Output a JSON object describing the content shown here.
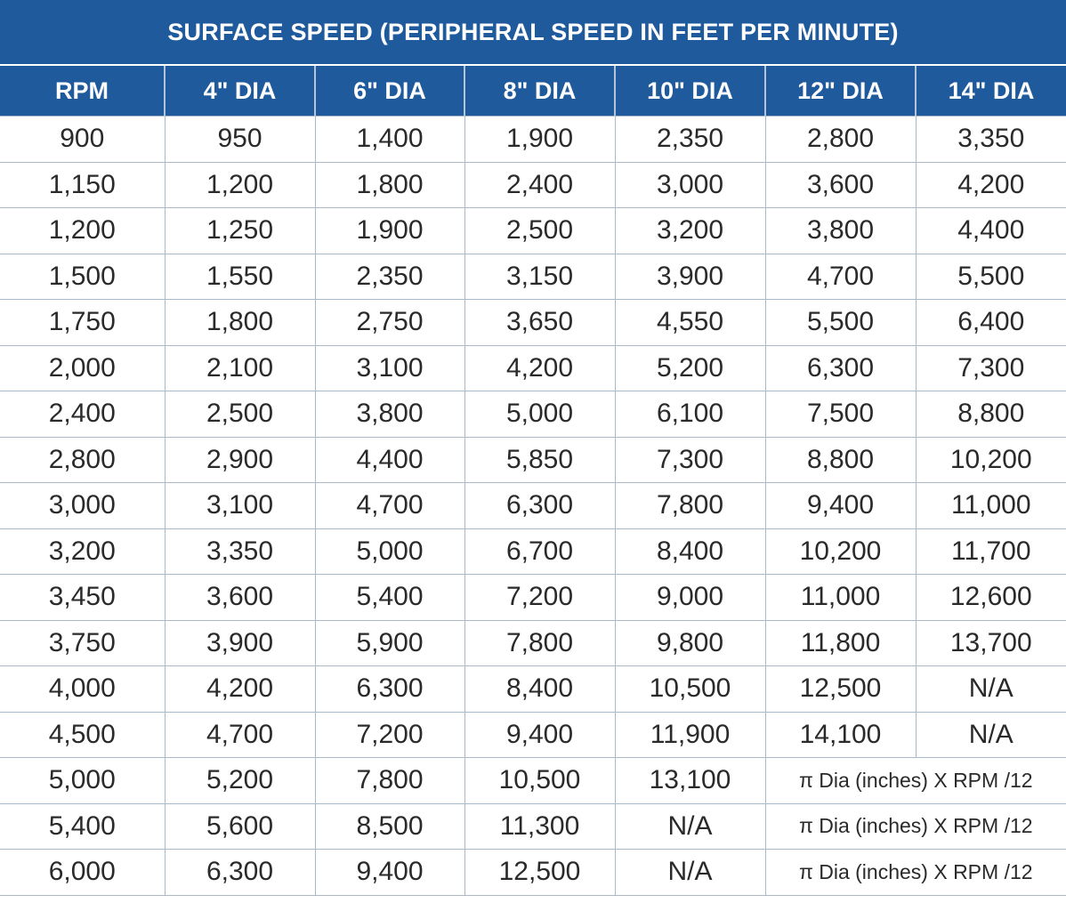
{
  "title": "SURFACE SPEED (PERIPHERAL SPEED IN FEET PER MINUTE)",
  "colors": {
    "header_bg": "#1f5a9c",
    "header_text": "#ffffff",
    "grid": "#aab8cc",
    "cell_text": "#2a2a2a"
  },
  "columns": [
    "RPM",
    "4\" DIA",
    "6\" DIA",
    "8\" DIA",
    "10\" DIA",
    "12\" DIA",
    "14\" DIA"
  ],
  "formula": "π Dia (inches) X RPM /12",
  "rows": [
    [
      "900",
      "950",
      "1,400",
      "1,900",
      "2,350",
      "2,800",
      "3,350"
    ],
    [
      "1,150",
      "1,200",
      "1,800",
      "2,400",
      "3,000",
      "3,600",
      "4,200"
    ],
    [
      "1,200",
      "1,250",
      "1,900",
      "2,500",
      "3,200",
      "3,800",
      "4,400"
    ],
    [
      "1,500",
      "1,550",
      "2,350",
      "3,150",
      "3,900",
      "4,700",
      "5,500"
    ],
    [
      "1,750",
      "1,800",
      "2,750",
      "3,650",
      "4,550",
      "5,500",
      "6,400"
    ],
    [
      "2,000",
      "2,100",
      "3,100",
      "4,200",
      "5,200",
      "6,300",
      "7,300"
    ],
    [
      "2,400",
      "2,500",
      "3,800",
      "5,000",
      "6,100",
      "7,500",
      "8,800"
    ],
    [
      "2,800",
      "2,900",
      "4,400",
      "5,850",
      "7,300",
      "8,800",
      "10,200"
    ],
    [
      "3,000",
      "3,100",
      "4,700",
      "6,300",
      "7,800",
      "9,400",
      "11,000"
    ],
    [
      "3,200",
      "3,350",
      "5,000",
      "6,700",
      "8,400",
      "10,200",
      "11,700"
    ],
    [
      "3,450",
      "3,600",
      "5,400",
      "7,200",
      "9,000",
      "11,000",
      "12,600"
    ],
    [
      "3,750",
      "3,900",
      "5,900",
      "7,800",
      "9,800",
      "11,800",
      "13,700"
    ],
    [
      "4,000",
      "4,200",
      "6,300",
      "8,400",
      "10,500",
      "12,500",
      "N/A"
    ],
    [
      "4,500",
      "4,700",
      "7,200",
      "9,400",
      "11,900",
      "14,100",
      "N/A"
    ],
    [
      "5,000",
      "5,200",
      "7,800",
      "10,500",
      "13,100"
    ],
    [
      "5,400",
      "5,600",
      "8,500",
      "11,300",
      "N/A"
    ],
    [
      "6,000",
      "6,300",
      "9,400",
      "12,500",
      "N/A"
    ]
  ]
}
